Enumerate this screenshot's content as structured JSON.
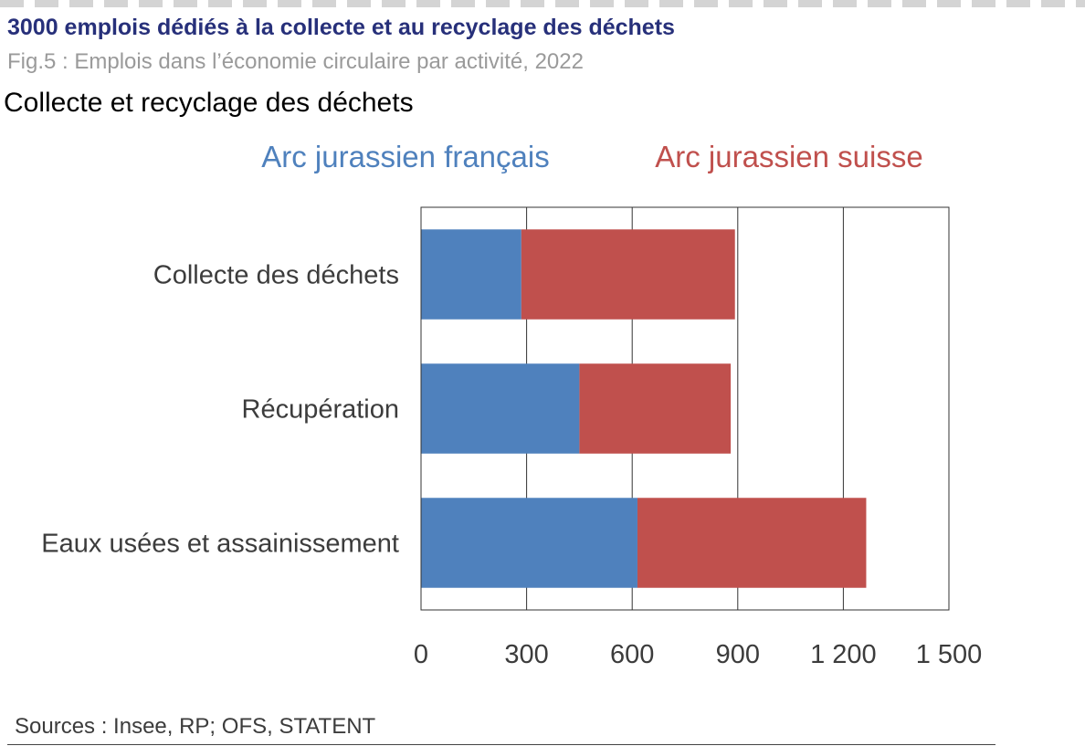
{
  "header": {
    "headline": "3000 emplois dédiés à la collecte et au recyclage des déchets",
    "subtitle": "Fig.5 : Emplois dans l’économie circulaire par activité, 2022",
    "section_title": "Collecte et recyclage des déchets"
  },
  "footer": {
    "source": "Sources : Insee, RP; OFS, STATENT"
  },
  "chart_data": {
    "type": "bar",
    "orientation": "horizontal",
    "stacked": true,
    "categories": [
      "Collecte des déchets",
      "Récupération",
      "Eaux usées et assainissement"
    ],
    "series": [
      {
        "name": "Arc jurassien français",
        "color": "#4f81bd",
        "values": [
          285,
          450,
          615
        ]
      },
      {
        "name": "Arc jurassien suisse",
        "color": "#c0504d",
        "values": [
          607,
          430,
          650
        ]
      }
    ],
    "xlim": [
      0,
      1500
    ],
    "ticks": [
      0,
      300,
      600,
      900,
      1200,
      1500
    ],
    "tick_labels": [
      "0",
      "300",
      "600",
      "900",
      "1 200",
      "1 500"
    ],
    "legend_position": "top",
    "grid": "vertical",
    "title": "Collecte et recyclage des déchets"
  }
}
